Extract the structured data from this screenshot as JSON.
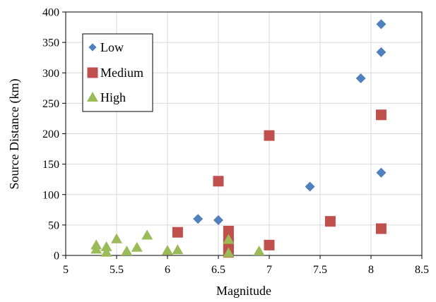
{
  "chart_data": {
    "type": "scatter",
    "title": "",
    "xlabel": "Magnitude",
    "ylabel": "Source Distance (km)",
    "xlim": [
      5,
      8.5
    ],
    "ylim": [
      0,
      400
    ],
    "xticks": [
      "5",
      "5.5",
      "6",
      "6.5",
      "7",
      "7.5",
      "8",
      "8.5"
    ],
    "yticks": [
      "0",
      "50",
      "100",
      "150",
      "200",
      "250",
      "300",
      "350",
      "400"
    ],
    "grid": true,
    "legend_position": "top-left",
    "series": [
      {
        "name": "Low",
        "marker": "diamond",
        "color": "#4f81bd",
        "points": [
          [
            6.3,
            60
          ],
          [
            6.5,
            58
          ],
          [
            7.4,
            113
          ],
          [
            7.9,
            291
          ],
          [
            8.1,
            380
          ],
          [
            8.1,
            334
          ],
          [
            8.1,
            136
          ]
        ]
      },
      {
        "name": "Medium",
        "marker": "square",
        "color": "#c0504d",
        "points": [
          [
            6.1,
            38
          ],
          [
            6.5,
            122
          ],
          [
            6.6,
            40
          ],
          [
            6.6,
            30
          ],
          [
            6.6,
            20
          ],
          [
            6.6,
            12
          ],
          [
            6.6,
            5
          ],
          [
            7.0,
            197
          ],
          [
            7.0,
            17
          ],
          [
            7.6,
            56
          ],
          [
            8.1,
            231
          ],
          [
            8.1,
            44
          ]
        ]
      },
      {
        "name": "High",
        "marker": "triangle",
        "color": "#9bbb59",
        "points": [
          [
            5.3,
            17
          ],
          [
            5.3,
            10
          ],
          [
            5.4,
            14
          ],
          [
            5.4,
            5
          ],
          [
            5.5,
            27
          ],
          [
            5.6,
            7
          ],
          [
            5.7,
            13
          ],
          [
            5.8,
            33
          ],
          [
            6.0,
            8
          ],
          [
            6.1,
            9
          ],
          [
            6.6,
            26
          ],
          [
            6.6,
            4
          ],
          [
            6.9,
            7
          ]
        ]
      }
    ]
  }
}
